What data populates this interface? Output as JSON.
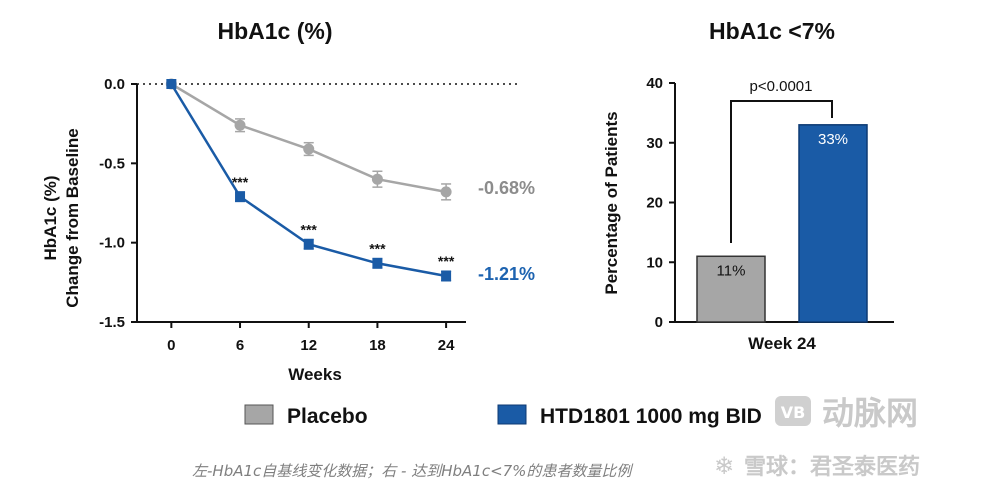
{
  "colors": {
    "placebo": "#a6a6a6",
    "htd": "#1a5ba6",
    "placebo_text": "#8c8c8c",
    "htd_text": "#1d63b0"
  },
  "chart_data": [
    {
      "type": "line",
      "title": "HbA1c (%)",
      "xlabel": "Weeks",
      "ylabel_lines": [
        "HbA1c (%)",
        "Change from Baseline"
      ],
      "x": [
        0,
        6,
        12,
        18,
        24
      ],
      "xlim": [
        -3,
        26
      ],
      "ylim": [
        -1.5,
        0.0
      ],
      "x_tick_labels": [
        "0",
        "6",
        "12",
        "18",
        "24"
      ],
      "y_ticks": [
        0.0,
        -0.5,
        -1.0,
        -1.5
      ],
      "y_tick_labels": [
        "0.0",
        "-0.5",
        "-1.0",
        "-1.5"
      ],
      "series": [
        {
          "name": "Placebo",
          "values": [
            0.0,
            -0.26,
            -0.41,
            -0.6,
            -0.68
          ],
          "error": [
            0.0,
            0.04,
            0.04,
            0.05,
            0.05
          ],
          "end_label": "-0.68%"
        },
        {
          "name": "HTD1801 1000 mg BID",
          "values": [
            0.0,
            -0.71,
            -1.01,
            -1.13,
            -1.21
          ],
          "error": [
            0.0,
            0.03,
            0.03,
            0.03,
            0.03
          ],
          "end_label": "-1.21%"
        }
      ],
      "annotations": [
        {
          "x": 6,
          "text": "***"
        },
        {
          "x": 12,
          "text": "***"
        },
        {
          "x": 18,
          "text": "***"
        },
        {
          "x": 24,
          "text": "***"
        }
      ],
      "zero_line": "dotted"
    },
    {
      "type": "bar",
      "title": "HbA1c <7%",
      "ylabel": "Percentage of Patients",
      "xlabel": "Week 24",
      "ylim": [
        0,
        40
      ],
      "y_ticks": [
        0,
        10,
        20,
        30,
        40
      ],
      "y_tick_labels": [
        "0",
        "10",
        "20",
        "30",
        "40"
      ],
      "categories": [
        "Placebo",
        "HTD1801 1000 mg BID"
      ],
      "values": [
        11,
        33
      ],
      "value_labels": [
        "11%",
        "33%"
      ],
      "significance": "p<0.0001"
    }
  ],
  "legend": {
    "items": [
      {
        "label": "Placebo"
      },
      {
        "label": "HTD1801 1000 mg BID"
      }
    ]
  },
  "caption": "左-HbA1c自基线变化数据；右 - 达到HbA1c<7%的患者数量比例",
  "watermarks": {
    "logo_text": "动脉网",
    "credit_text": "雪球：君圣泰医药"
  }
}
